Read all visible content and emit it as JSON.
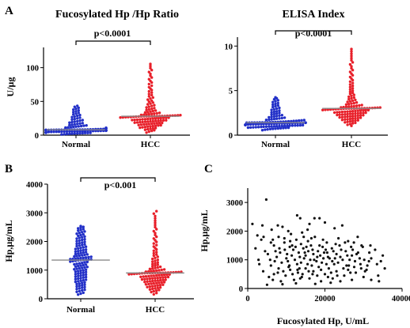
{
  "colors": {
    "normal": "#2230c8",
    "hcc": "#e8202a",
    "scatter": "#111111",
    "median": "#8a8a8a",
    "axis": "#000000"
  },
  "chart_data": [
    {
      "id": "panelA1",
      "panel_label": "A",
      "type": "scatter",
      "title": "Fucosylated Hp /Hp Ratio",
      "ylabel": "U/µg",
      "xlabel": "",
      "categories": [
        "Normal",
        "HCC"
      ],
      "ylim": [
        0,
        130
      ],
      "yticks": [
        0,
        50,
        100
      ],
      "grid": false,
      "bracket_label": "p<0.0001",
      "series": [
        {
          "name": "Normal",
          "color_key": "normal",
          "n": 130,
          "median": 8,
          "min": 0.5,
          "max": 44,
          "dist": "skew"
        },
        {
          "name": "HCC",
          "color_key": "hcc",
          "n": 130,
          "median": 28,
          "min": 2,
          "max": 107,
          "dist": "skew"
        }
      ]
    },
    {
      "id": "panelA2",
      "panel_label": "",
      "type": "scatter",
      "title": "ELISA Index",
      "ylabel": "",
      "xlabel": "",
      "categories": [
        "Normal",
        "HCC"
      ],
      "ylim": [
        0,
        11
      ],
      "yticks": [
        0,
        5,
        10
      ],
      "grid": false,
      "bracket_label": "p<0.0001",
      "series": [
        {
          "name": "Normal",
          "color_key": "normal",
          "n": 130,
          "median": 1.4,
          "min": 0.5,
          "max": 4.3,
          "dist": "skew"
        },
        {
          "name": "HCC",
          "color_key": "hcc",
          "n": 130,
          "median": 3.0,
          "min": 0.9,
          "max": 9.8,
          "dist": "skew"
        }
      ]
    },
    {
      "id": "panelB",
      "panel_label": "B",
      "type": "scatter",
      "title": "",
      "ylabel": "Hp,µg/mL",
      "xlabel": "",
      "categories": [
        "Normal",
        "HCC"
      ],
      "ylim": [
        0,
        4000
      ],
      "yticks": [
        0,
        1000,
        2000,
        3000,
        4000
      ],
      "grid": false,
      "bracket_label": "p<0.001",
      "series": [
        {
          "name": "Normal",
          "color_key": "normal",
          "n": 130,
          "median": 1350,
          "min": 120,
          "max": 2550,
          "dist": "sym"
        },
        {
          "name": "HCC",
          "color_key": "hcc",
          "n": 130,
          "median": 900,
          "min": 100,
          "max": 3100,
          "dist": "skew"
        }
      ]
    },
    {
      "id": "panelC",
      "panel_label": "C",
      "type": "scatter",
      "title": "",
      "ylabel": "Hp,µg/mL",
      "xlabel": "Fucosylated Hp, U/mL",
      "xlim": [
        0,
        40000
      ],
      "xticks": [
        0,
        20000,
        40000
      ],
      "ylim": [
        0,
        3500
      ],
      "yticks": [
        0,
        1000,
        2000,
        3000
      ],
      "grid": false,
      "points": [
        [
          4800,
          3100
        ],
        [
          1200,
          2250
        ],
        [
          3800,
          2200
        ],
        [
          4100,
          1800
        ],
        [
          2500,
          1850
        ],
        [
          6200,
          2050
        ],
        [
          7800,
          2200
        ],
        [
          9000,
          2150
        ],
        [
          12800,
          2550
        ],
        [
          13600,
          2450
        ],
        [
          17300,
          2450
        ],
        [
          18600,
          2450
        ],
        [
          16000,
          2250
        ],
        [
          20000,
          2300
        ],
        [
          10500,
          2000
        ],
        [
          11200,
          1900
        ],
        [
          14100,
          1950
        ],
        [
          15500,
          2050
        ],
        [
          22500,
          2100
        ],
        [
          24500,
          2200
        ],
        [
          27500,
          1600
        ],
        [
          29500,
          1500
        ],
        [
          31800,
          1500
        ],
        [
          33000,
          1350
        ],
        [
          35000,
          1150
        ],
        [
          34500,
          950
        ],
        [
          33500,
          850
        ],
        [
          35500,
          700
        ],
        [
          2000,
          1400
        ],
        [
          2800,
          1000
        ],
        [
          3000,
          850
        ],
        [
          5200,
          1200
        ],
        [
          6000,
          800
        ],
        [
          6800,
          1500
        ],
        [
          7500,
          1100
        ],
        [
          8200,
          1400
        ],
        [
          8800,
          900
        ],
        [
          9500,
          1600
        ],
        [
          10200,
          1200
        ],
        [
          10800,
          800
        ],
        [
          11500,
          1500
        ],
        [
          12200,
          1000
        ],
        [
          12600,
          1700
        ],
        [
          13200,
          1250
        ],
        [
          13800,
          900
        ],
        [
          14400,
          1400
        ],
        [
          15000,
          1150
        ],
        [
          15600,
          1650
        ],
        [
          16200,
          1000
        ],
        [
          16800,
          1350
        ],
        [
          17400,
          1800
        ],
        [
          18000,
          1100
        ],
        [
          18600,
          1500
        ],
        [
          19200,
          900
        ],
        [
          19800,
          1250
        ],
        [
          20500,
          1600
        ],
        [
          21200,
          1050
        ],
        [
          21800,
          1400
        ],
        [
          22400,
          850
        ],
        [
          23000,
          1200
        ],
        [
          23800,
          1500
        ],
        [
          24600,
          1000
        ],
        [
          25400,
          1300
        ],
        [
          26200,
          800
        ],
        [
          27000,
          1150
        ],
        [
          27800,
          950
        ],
        [
          28600,
          1250
        ],
        [
          29400,
          700
        ],
        [
          30200,
          1000
        ],
        [
          31000,
          800
        ],
        [
          32000,
          1050
        ],
        [
          4000,
          600
        ],
        [
          5500,
          400
        ],
        [
          6500,
          300
        ],
        [
          7800,
          550
        ],
        [
          8600,
          250
        ],
        [
          9800,
          450
        ],
        [
          11000,
          650
        ],
        [
          12000,
          300
        ],
        [
          13000,
          550
        ],
        [
          14000,
          400
        ],
        [
          15000,
          700
        ],
        [
          16000,
          350
        ],
        [
          17000,
          600
        ],
        [
          18000,
          450
        ],
        [
          19000,
          250
        ],
        [
          20000,
          500
        ],
        [
          21000,
          700
        ],
        [
          22000,
          350
        ],
        [
          23000,
          600
        ],
        [
          24000,
          250
        ],
        [
          25000,
          450
        ],
        [
          26000,
          650
        ],
        [
          27000,
          300
        ],
        [
          28000,
          550
        ],
        [
          30000,
          400
        ],
        [
          32000,
          300
        ],
        [
          34000,
          250
        ],
        [
          5000,
          130
        ],
        [
          9000,
          150
        ],
        [
          12500,
          180
        ],
        [
          17500,
          160
        ],
        [
          21500,
          200
        ],
        [
          3500,
          1700
        ],
        [
          6500,
          1700
        ],
        [
          8000,
          1800
        ],
        [
          9500,
          1750
        ],
        [
          11000,
          1650
        ],
        [
          14500,
          1800
        ],
        [
          16500,
          1750
        ],
        [
          19500,
          1700
        ],
        [
          23500,
          1750
        ],
        [
          26000,
          1650
        ],
        [
          28500,
          1800
        ],
        [
          7000,
          950
        ],
        [
          10000,
          1050
        ],
        [
          13500,
          1100
        ],
        [
          15500,
          850
        ],
        [
          17800,
          950
        ],
        [
          20800,
          1100
        ],
        [
          24200,
          1350
        ],
        [
          26800,
          1450
        ],
        [
          29000,
          1050
        ],
        [
          31500,
          1250
        ],
        [
          8400,
          1250
        ],
        [
          11800,
          1350
        ],
        [
          14800,
          1250
        ],
        [
          17000,
          1200
        ],
        [
          19400,
          1450
        ],
        [
          22200,
          1300
        ],
        [
          25800,
          1150
        ],
        [
          5800,
          1000
        ],
        [
          10600,
          750
        ],
        [
          13400,
          700
        ],
        [
          15800,
          600
        ],
        [
          18400,
          750
        ],
        [
          20400,
          850
        ],
        [
          23400,
          900
        ],
        [
          27600,
          750
        ],
        [
          30800,
          650
        ],
        [
          9200,
          600
        ],
        [
          12800,
          850
        ],
        [
          16600,
          800
        ],
        [
          19000,
          650
        ],
        [
          21600,
          550
        ],
        [
          24800,
          700
        ],
        [
          4500,
          1300
        ],
        [
          6000,
          1600
        ],
        [
          7200,
          1300
        ],
        [
          11400,
          1150
        ],
        [
          12400,
          1450
        ],
        [
          13800,
          1550
        ],
        [
          15200,
          1450
        ],
        [
          18200,
          1300
        ],
        [
          20200,
          1350
        ],
        [
          22800,
          1550
        ],
        [
          25200,
          1600
        ],
        [
          27200,
          1350
        ],
        [
          29800,
          1450
        ],
        [
          9600,
          1350
        ],
        [
          10900,
          1450
        ],
        [
          14600,
          1050
        ],
        [
          16400,
          1500
        ],
        [
          19600,
          1050
        ],
        [
          21900,
          950
        ],
        [
          24000,
          1100
        ],
        [
          26400,
          1000
        ],
        [
          28200,
          1200
        ],
        [
          8000,
          700
        ],
        [
          10400,
          950
        ],
        [
          12900,
          650
        ],
        [
          14200,
          500
        ],
        [
          15700,
          1300
        ],
        [
          17200,
          1000
        ],
        [
          18800,
          1150
        ],
        [
          20600,
          1250
        ],
        [
          22600,
          1050
        ],
        [
          25600,
          800
        ],
        [
          29200,
          850
        ],
        [
          31400,
          950
        ],
        [
          33800,
          450
        ],
        [
          6800,
          500
        ],
        [
          11600,
          500
        ],
        [
          13600,
          350
        ],
        [
          16800,
          500
        ],
        [
          20800,
          400
        ],
        [
          23200,
          450
        ],
        [
          26600,
          550
        ],
        [
          30400,
          600
        ]
      ]
    }
  ]
}
